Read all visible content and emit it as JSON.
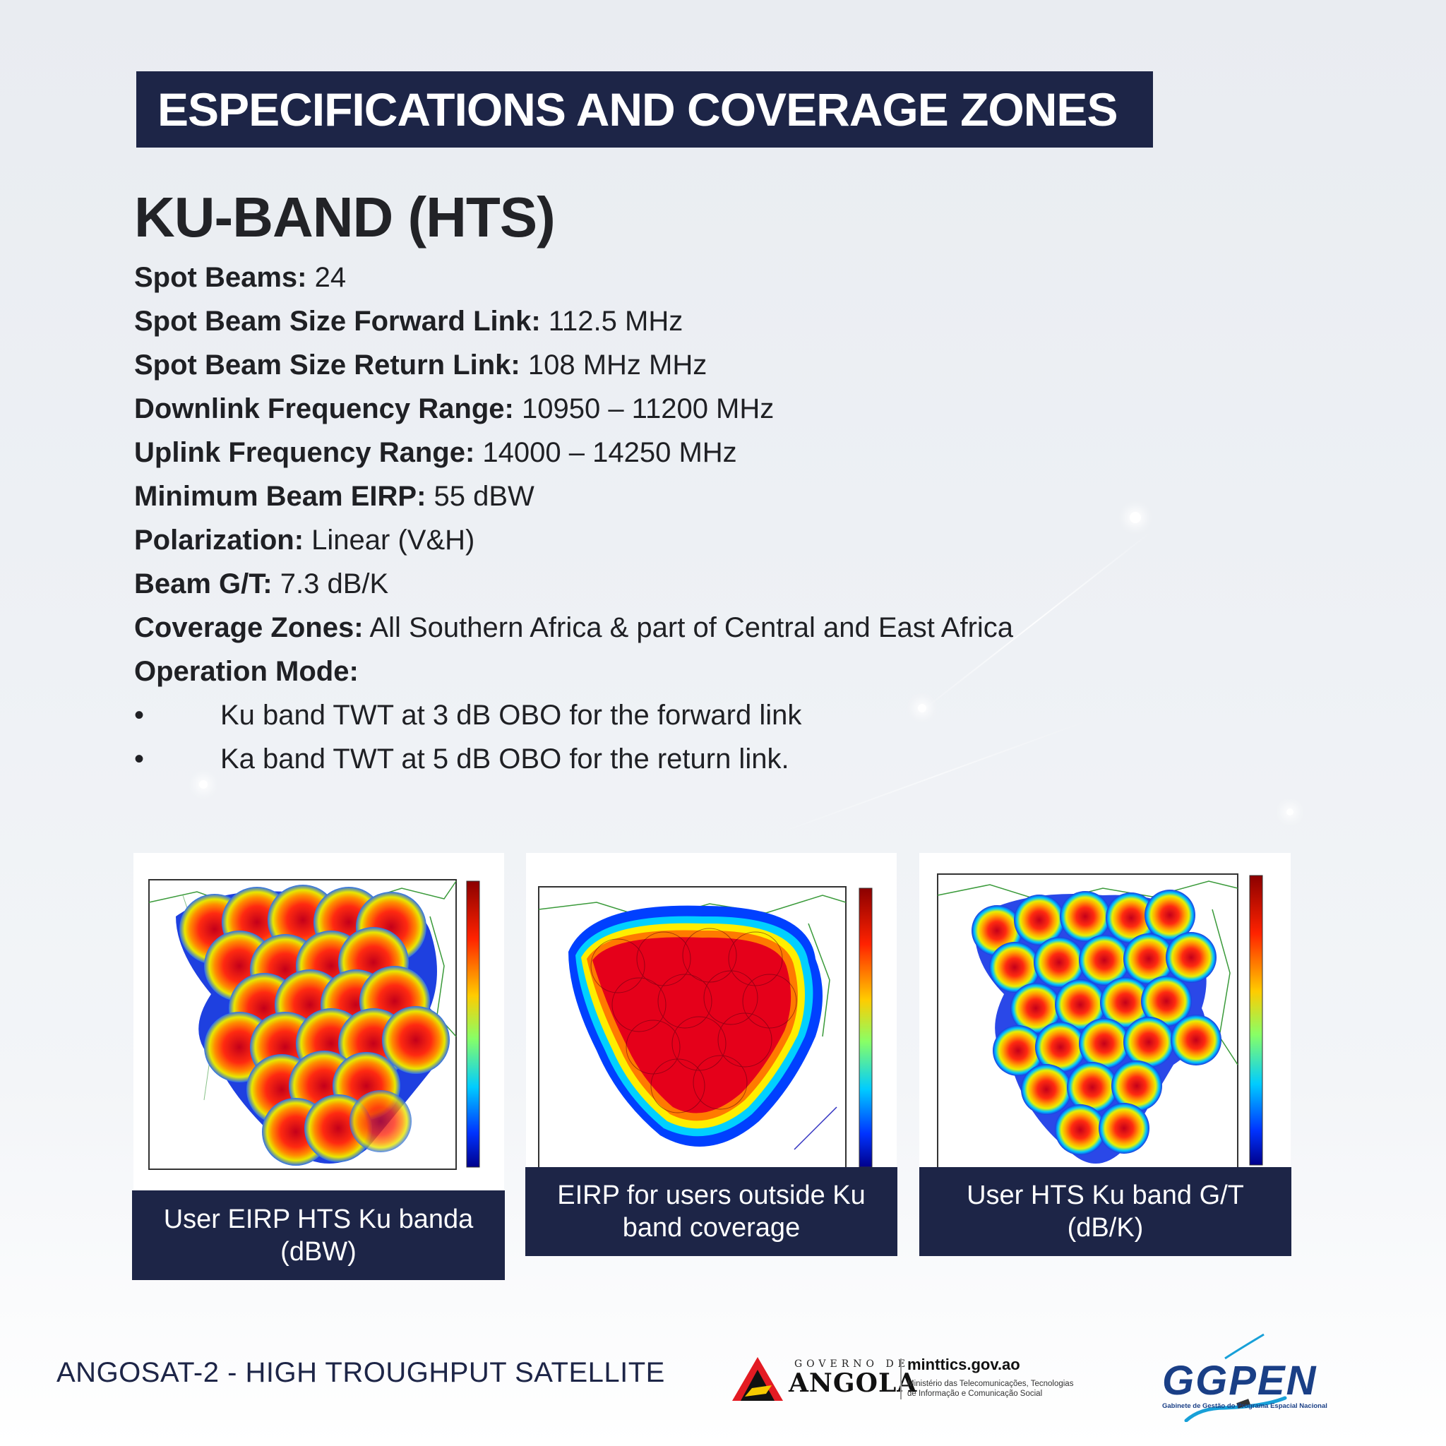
{
  "header": {
    "title": "ESPECIFICATIONS AND COVERAGE ZONES"
  },
  "section": {
    "heading": "KU-BAND (HTS)"
  },
  "specs": [
    {
      "label": "Spot Beams:",
      "value": " 24"
    },
    {
      "label": "Spot Beam Size Forward Link:",
      "value": " 112.5 MHz"
    },
    {
      "label": "Spot Beam Size Return Link:",
      "value": " 108 MHz MHz"
    },
    {
      "label": "Downlink Frequency Range:",
      "value": " 10950 – 11200 MHz"
    },
    {
      "label": "Uplink Frequency Range:",
      "value": " 14000 – 14250 MHz"
    },
    {
      "label": "Minimum Beam EIRP:",
      "value": " 55 dBW"
    },
    {
      "label": "Polarization:",
      "value": " Linear (V&H)"
    },
    {
      "label": "Beam G/T:",
      "value": " 7.3 dB/K"
    },
    {
      "label": "Coverage Zones:",
      "value": " All Southern Africa & part of Central and East Africa"
    },
    {
      "label": "Operation Mode:",
      "value": ""
    }
  ],
  "operation_mode": {
    "bullet": "•",
    "items": [
      "Ku band TWT at 3 dB OBO for the forward link",
      "Ka band TWT at 5 dB OBO for the return link."
    ]
  },
  "figures": [
    {
      "caption_line1": "User EIRP HTS Ku banda",
      "caption_line2": "(dBW)"
    },
    {
      "caption_line1": "EIRP for users outside Ku",
      "caption_line2": "band coverage"
    },
    {
      "caption_line1": "User HTS Ku band G/T",
      "caption_line2": "(dB/K)"
    }
  ],
  "footer": {
    "title": "ANGOSAT-2 - HIGH TROUGHPUT SATELLITE",
    "gov_small": "GOVERNO DE",
    "gov_big": "ANGOLA",
    "gov_site": "minttics.gov.ao",
    "gov_ministry_line1": "Ministério das Telecomunicações, Tecnologias",
    "gov_ministry_line2": "de Informação e Comunicação Social",
    "agency_logo": "GGPEN",
    "agency_name": "Gabinete de Gestão do Programa Espacial Nacional"
  },
  "colors": {
    "navy": "#1d2547",
    "text": "#1f2024",
    "beam_red": "#c8001a"
  }
}
